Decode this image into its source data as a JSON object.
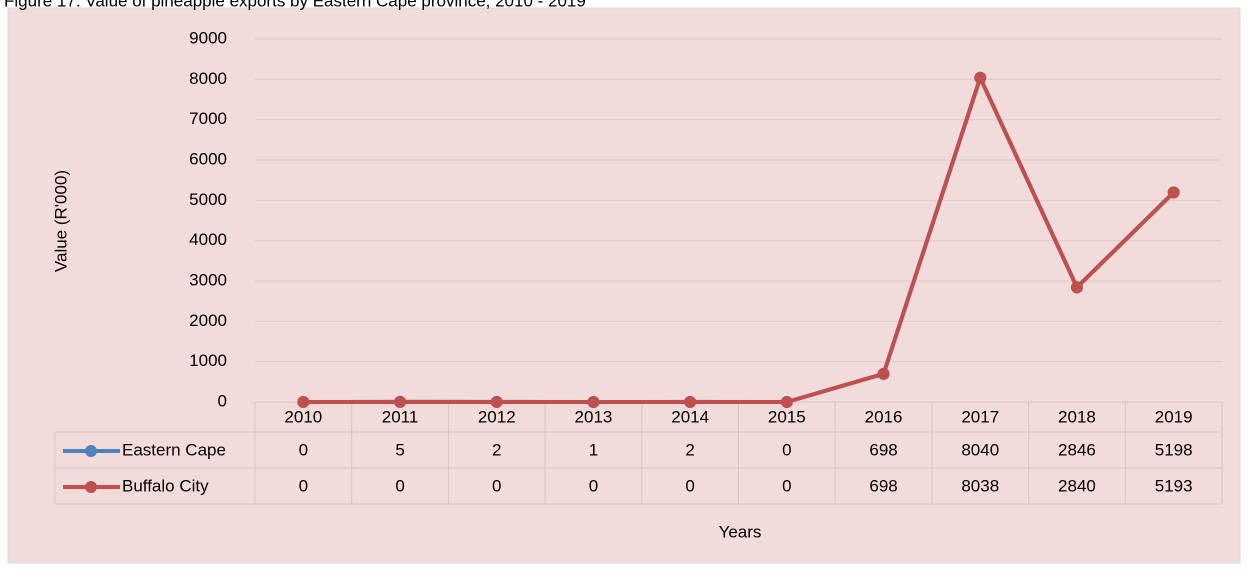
{
  "chart_data": {
    "type": "line",
    "title": "Figure 17: Value of pineapple exports by Eastern Cape province, 2010 - 2019",
    "ylabel": "Value (R'000)",
    "xlabel": "Years",
    "categories": [
      "2010",
      "2011",
      "2012",
      "2013",
      "2014",
      "2015",
      "2016",
      "2017",
      "2018",
      "2019"
    ],
    "series": [
      {
        "name": "Eastern Cape",
        "color": "#4f81bd",
        "values": [
          0,
          5,
          2,
          1,
          2,
          0,
          698,
          8040,
          2846,
          5198
        ]
      },
      {
        "name": "Buffalo City",
        "color": "#c0504d",
        "values": [
          0,
          0,
          0,
          0,
          0,
          0,
          698,
          8038,
          2840,
          5193
        ]
      }
    ],
    "ylim": [
      0,
      9000
    ],
    "yticks": [
      0,
      1000,
      2000,
      3000,
      4000,
      5000,
      6000,
      7000,
      8000,
      9000
    ],
    "grid": true,
    "data_table": true
  }
}
